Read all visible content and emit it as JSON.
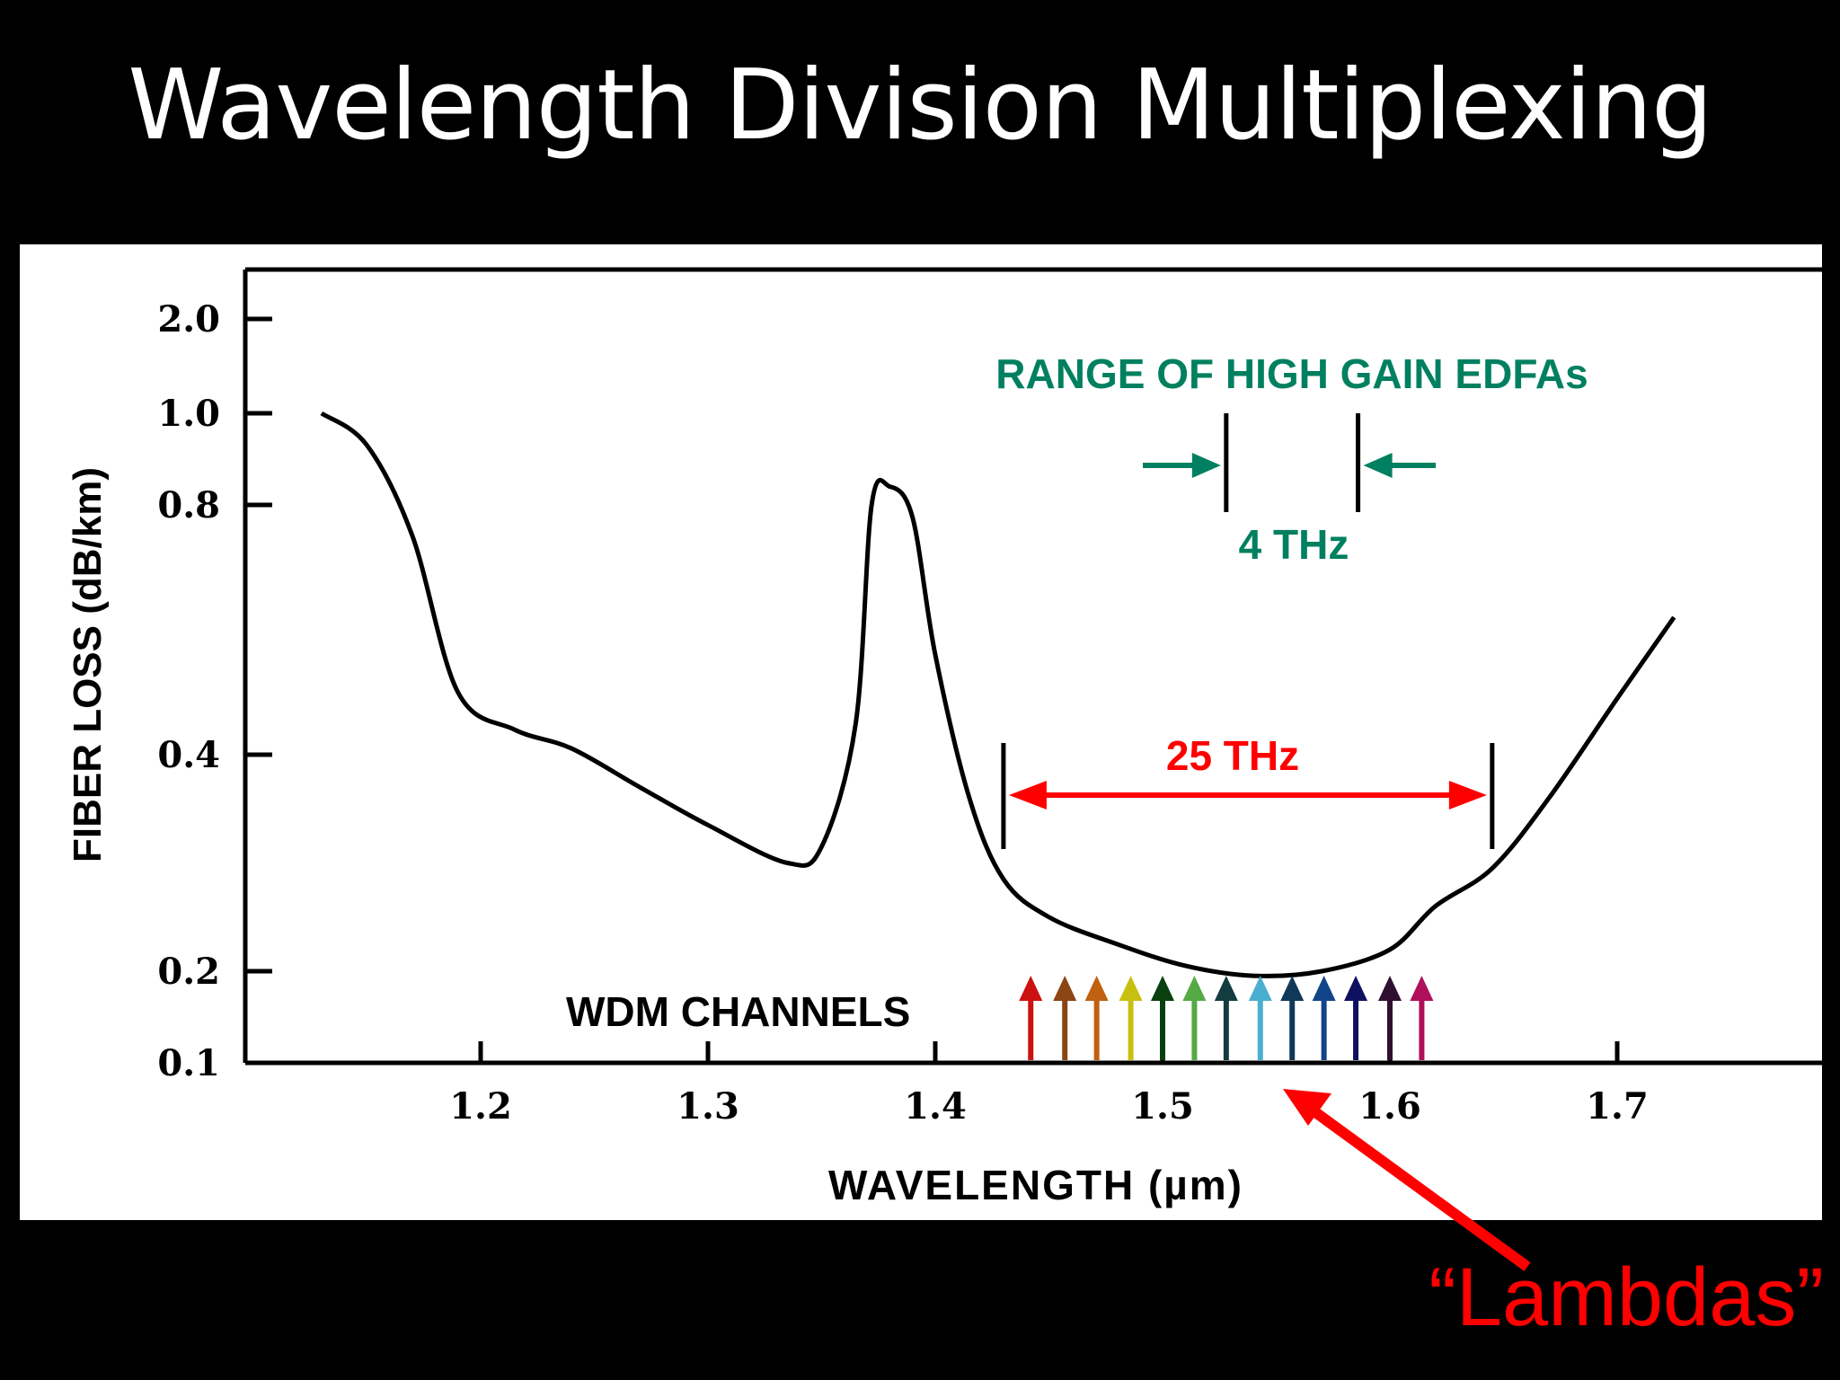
{
  "slide": {
    "title": "Wavelength Division Multiplexing",
    "callout_label": "“Lambdas”",
    "callout_color": "#ff0000"
  },
  "chart_data": {
    "type": "line",
    "xlabel": "WAVELENGTH (µm)",
    "ylabel": "FIBER LOSS (dB/km)",
    "xlim": [
      1.1,
      1.8
    ],
    "x_ticks": [
      1.2,
      1.3,
      1.4,
      1.5,
      1.6,
      1.7
    ],
    "y_ticks": [
      0.1,
      0.2,
      0.4,
      0.8,
      1.0,
      2.0
    ],
    "y_scale": "nonlinear (labeled ticks)",
    "grid": false,
    "series": [
      {
        "color": "#000000",
        "points": [
          [
            1.13,
            1.0
          ],
          [
            1.15,
            0.93
          ],
          [
            1.17,
            0.75
          ],
          [
            1.19,
            0.5
          ],
          [
            1.215,
            0.44
          ],
          [
            1.24,
            0.41
          ],
          [
            1.27,
            0.37
          ],
          [
            1.3,
            0.335
          ],
          [
            1.335,
            0.3
          ],
          [
            1.35,
            0.315
          ],
          [
            1.365,
            0.45
          ],
          [
            1.372,
            0.8
          ],
          [
            1.38,
            0.84
          ],
          [
            1.39,
            0.78
          ],
          [
            1.4,
            0.56
          ],
          [
            1.415,
            0.36
          ],
          [
            1.43,
            0.285
          ],
          [
            1.45,
            0.25
          ],
          [
            1.48,
            0.225
          ],
          [
            1.51,
            0.205
          ],
          [
            1.54,
            0.195
          ],
          [
            1.57,
            0.2
          ],
          [
            1.6,
            0.22
          ],
          [
            1.62,
            0.26
          ],
          [
            1.645,
            0.295
          ],
          [
            1.67,
            0.36
          ],
          [
            1.7,
            0.49
          ],
          [
            1.725,
            0.62
          ]
        ]
      }
    ],
    "annotations": {
      "edfa_range": {
        "label": "RANGE OF HIGH GAIN EDFAs",
        "bandwidth_label": "4 THz",
        "x_range": [
          1.528,
          1.586
        ],
        "color": "#008060"
      },
      "low_loss_window": {
        "label": "25 THz",
        "x_range": [
          1.43,
          1.645
        ],
        "color": "#ff0000"
      },
      "wdm_channels": {
        "label": "WDM CHANNELS",
        "wavelengths": [
          1.442,
          1.457,
          1.471,
          1.486,
          1.5,
          1.514,
          1.528,
          1.543,
          1.557,
          1.571,
          1.585,
          1.6,
          1.614
        ],
        "colors": [
          "#cc1111",
          "#8b4513",
          "#c06010",
          "#c8c010",
          "#0a4010",
          "#55aa44",
          "#123c40",
          "#4aaed0",
          "#103858",
          "#114488",
          "#101060",
          "#301030",
          "#b0105a"
        ]
      }
    }
  }
}
